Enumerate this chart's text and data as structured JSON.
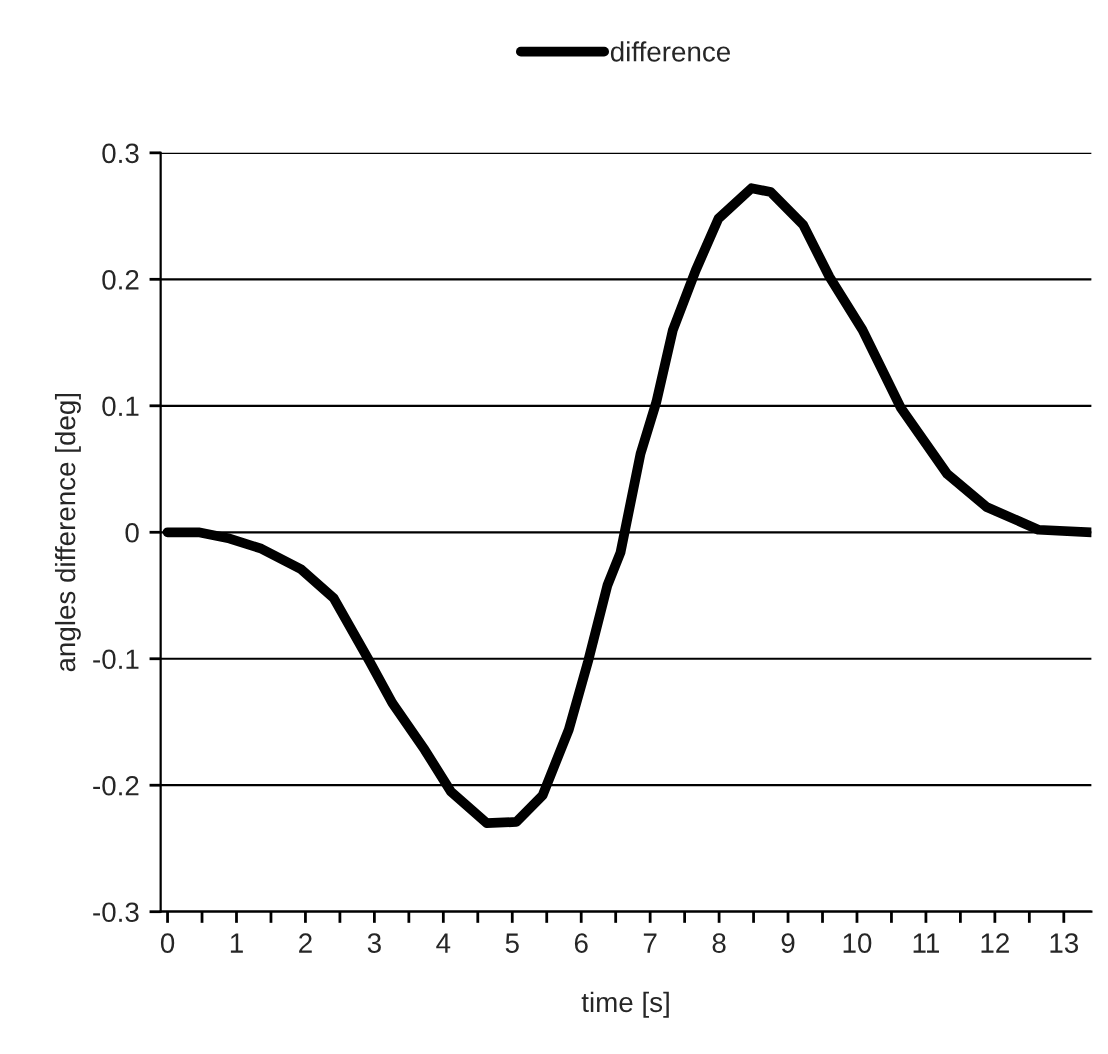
{
  "chart_data": {
    "type": "line",
    "xlabel": "time [s]",
    "ylabel": "angles difference [deg]",
    "x": [
      0,
      0.45,
      0.9,
      1.36,
      1.93,
      2.41,
      2.93,
      3.26,
      3.73,
      4.11,
      4.63,
      5.06,
      5.44,
      5.82,
      6.1,
      6.38,
      6.57,
      6.86,
      7.09,
      7.33,
      7.66,
      7.99,
      8.47,
      8.75,
      9.22,
      9.6,
      10.08,
      10.64,
      11.31,
      11.88,
      12.63,
      13.4
    ],
    "series": [
      {
        "name": "difference",
        "color": "#000000",
        "values": [
          0,
          0,
          -0.005,
          -0.013,
          -0.029,
          -0.052,
          -0.102,
          -0.135,
          -0.172,
          -0.205,
          -0.23,
          -0.229,
          -0.208,
          -0.156,
          -0.102,
          -0.042,
          -0.016,
          0.062,
          0.103,
          0.16,
          0.207,
          0.248,
          0.272,
          0.269,
          0.243,
          0.202,
          0.16,
          0.098,
          0.046,
          0.02,
          0.002,
          0
        ]
      }
    ],
    "xlim": [
      -0.1,
      13.4
    ],
    "xticks": [
      0,
      {
        "value": 0.5,
        "label": null
      },
      1,
      {
        "value": 1.5,
        "label": null
      },
      2,
      {
        "value": 2.5,
        "label": null
      },
      3,
      {
        "value": 3.5,
        "label": null
      },
      4,
      {
        "value": 4.5,
        "label": null
      },
      5,
      {
        "value": 5.5,
        "label": null
      },
      6,
      {
        "value": 6.5,
        "label": null
      },
      7,
      {
        "value": 7.5,
        "label": null
      },
      8,
      {
        "value": 8.5,
        "label": null
      },
      9,
      {
        "value": 9.5,
        "label": null
      },
      10,
      {
        "value": 10.5,
        "label": null
      },
      11,
      {
        "value": 11.5,
        "label": null
      },
      12,
      {
        "value": 12.5,
        "label": null
      },
      13
    ],
    "ylim": [
      -0.3,
      0.3
    ],
    "yticks": [
      -0.3,
      -0.2,
      -0.1,
      0,
      0.1,
      0.2,
      0.3
    ],
    "grid": "y",
    "legend": "top",
    "marker": "none",
    "line_style": "solid"
  }
}
